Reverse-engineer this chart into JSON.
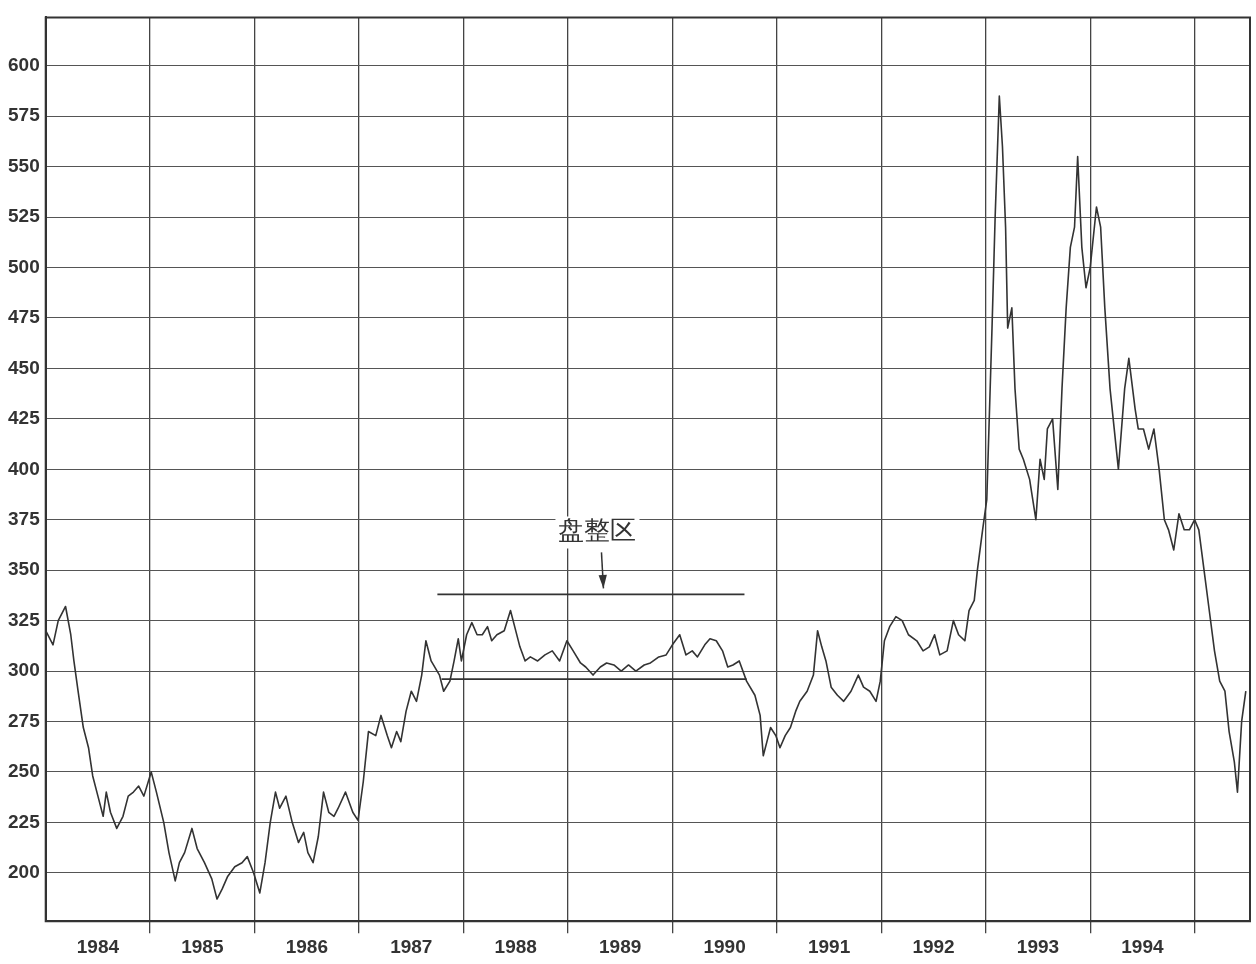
{
  "chart_data": {
    "type": "line",
    "annotations": [
      {
        "text": "盘整区",
        "x": 1989.34,
        "y": 338
      }
    ],
    "xlim": [
      1984,
      1995.53
    ],
    "ylim": [
      176,
      624
    ],
    "xticks": [
      {
        "value": 1984.5,
        "label": "1984"
      },
      {
        "value": 1985,
        "label": null
      },
      {
        "value": 1985.5,
        "label": "1985"
      },
      {
        "value": 1986,
        "label": null
      },
      {
        "value": 1986.5,
        "label": "1986"
      },
      {
        "value": 1987,
        "label": null
      },
      {
        "value": 1987.5,
        "label": "1987"
      },
      {
        "value": 1988,
        "label": null
      },
      {
        "value": 1988.5,
        "label": "1988"
      },
      {
        "value": 1989,
        "label": null
      },
      {
        "value": 1989.5,
        "label": "1989"
      },
      {
        "value": 1990,
        "label": null
      },
      {
        "value": 1990.5,
        "label": "1990"
      },
      {
        "value": 1991,
        "label": null
      },
      {
        "value": 1991.5,
        "label": "1991"
      },
      {
        "value": 1992,
        "label": null
      },
      {
        "value": 1992.5,
        "label": "1992"
      },
      {
        "value": 1993,
        "label": null
      },
      {
        "value": 1993.5,
        "label": "1993"
      },
      {
        "value": 1994,
        "label": null
      },
      {
        "value": 1994.5,
        "label": "1994"
      },
      {
        "value": 1995,
        "label": null
      }
    ],
    "yticks": [
      200,
      225,
      250,
      275,
      300,
      325,
      350,
      375,
      400,
      425,
      450,
      475,
      500,
      525,
      550,
      575,
      600
    ],
    "grid": true,
    "marker": "none",
    "line_style": "solid",
    "series": [
      {
        "color": "#333333",
        "x": [
          1984.0,
          1984.07,
          1984.12,
          1984.19,
          1984.24,
          1984.27,
          1984.31,
          1984.36,
          1984.41,
          1984.45,
          1984.5,
          1984.55,
          1984.58,
          1984.62,
          1984.68,
          1984.74,
          1984.79,
          1984.84,
          1984.89,
          1984.94,
          1985.01,
          1985.06,
          1985.13,
          1985.18,
          1985.24,
          1985.28,
          1985.33,
          1985.4,
          1985.45,
          1985.52,
          1985.59,
          1985.64,
          1985.69,
          1985.74,
          1985.81,
          1985.88,
          1985.93,
          1985.99,
          1986.05,
          1986.1,
          1986.15,
          1986.2,
          1986.24,
          1986.3,
          1986.36,
          1986.42,
          1986.47,
          1986.51,
          1986.56,
          1986.61,
          1986.66,
          1986.71,
          1986.76,
          1986.8,
          1986.87,
          1986.94,
          1986.99,
          1987.04,
          1987.09,
          1987.16,
          1987.21,
          1987.27,
          1987.31,
          1987.36,
          1987.4,
          1987.45,
          1987.5,
          1987.55,
          1987.6,
          1987.64,
          1987.69,
          1987.77,
          1987.81,
          1987.87,
          1987.91,
          1987.95,
          1987.98,
          1988.03,
          1988.08,
          1988.13,
          1988.18,
          1988.23,
          1988.27,
          1988.32,
          1988.39,
          1988.45,
          1988.49,
          1988.54,
          1988.59,
          1988.64,
          1988.71,
          1988.78,
          1988.85,
          1988.92,
          1988.99,
          1989.05,
          1989.12,
          1989.17,
          1989.24,
          1989.31,
          1989.37,
          1989.44,
          1989.51,
          1989.58,
          1989.65,
          1989.73,
          1989.79,
          1989.87,
          1989.94,
          1990.0,
          1990.07,
          1990.13,
          1990.19,
          1990.24,
          1990.31,
          1990.36,
          1990.42,
          1990.48,
          1990.53,
          1990.58,
          1990.64,
          1990.71,
          1990.79,
          1990.84,
          1990.87,
          1990.91,
          1990.94,
          1990.99,
          1991.03,
          1991.08,
          1991.13,
          1991.18,
          1991.22,
          1991.29,
          1991.35,
          1991.39,
          1991.43,
          1991.47,
          1991.52,
          1991.58,
          1991.64,
          1991.71,
          1991.78,
          1991.83,
          1991.89,
          1991.95,
          1991.99,
          1992.03,
          1992.08,
          1992.14,
          1992.2,
          1992.26,
          1992.34,
          1992.4,
          1992.46,
          1992.51,
          1992.56,
          1992.63,
          1992.69,
          1992.74,
          1992.8,
          1992.84,
          1992.89,
          1992.92,
          1992.97,
          1993.01,
          1993.06,
          1993.09,
          1993.13,
          1993.16,
          1993.19,
          1993.21,
          1993.25,
          1993.28,
          1993.32,
          1993.36,
          1993.42,
          1993.48,
          1993.52,
          1993.56,
          1993.59,
          1993.64,
          1993.69,
          1993.73,
          1993.77,
          1993.81,
          1993.85,
          1993.88,
          1993.92,
          1993.96,
          1994.0,
          1994.06,
          1994.1,
          1994.14,
          1994.19,
          1994.23,
          1994.27,
          1994.33,
          1994.37,
          1994.43,
          1994.46,
          1994.51,
          1994.56,
          1994.61,
          1994.66,
          1994.71,
          1994.75,
          1994.8,
          1994.85,
          1994.9,
          1994.95,
          1995.0,
          1995.04,
          1995.09,
          1995.14,
          1995.19,
          1995.24,
          1995.29,
          1995.33,
          1995.38,
          1995.41,
          1995.45,
          1995.49
        ],
        "values": [
          320,
          313,
          325,
          332,
          318,
          305,
          290,
          272,
          262,
          248,
          238,
          228,
          240,
          230,
          222,
          228,
          238,
          240,
          243,
          238,
          250,
          240,
          225,
          210,
          196,
          205,
          210,
          222,
          212,
          205,
          197,
          187,
          192,
          198,
          203,
          205,
          208,
          200,
          190,
          205,
          225,
          240,
          232,
          238,
          225,
          215,
          220,
          210,
          205,
          218,
          240,
          230,
          228,
          232,
          240,
          230,
          226,
          245,
          270,
          268,
          278,
          268,
          262,
          270,
          265,
          280,
          290,
          285,
          298,
          315,
          305,
          298,
          290,
          295,
          305,
          316,
          305,
          318,
          324,
          318,
          318,
          322,
          315,
          318,
          320,
          330,
          322,
          312,
          305,
          307,
          305,
          308,
          310,
          305,
          315,
          310,
          304,
          302,
          298,
          302,
          304,
          303,
          300,
          303,
          300,
          303,
          304,
          307,
          308,
          313,
          318,
          308,
          310,
          307,
          313,
          316,
          315,
          310,
          302,
          303,
          305,
          295,
          288,
          278,
          258,
          266,
          272,
          268,
          262,
          268,
          272,
          280,
          285,
          290,
          298,
          320,
          312,
          305,
          292,
          288,
          285,
          290,
          298,
          292,
          290,
          285,
          295,
          315,
          322,
          327,
          325,
          318,
          315,
          310,
          312,
          318,
          308,
          310,
          325,
          318,
          315,
          330,
          335,
          350,
          370,
          385,
          470,
          525,
          585,
          560,
          520,
          470,
          480,
          440,
          410,
          405,
          395,
          375,
          405,
          395,
          420,
          425,
          390,
          440,
          480,
          510,
          520,
          555,
          510,
          490,
          500,
          530,
          520,
          480,
          440,
          420,
          400,
          440,
          455,
          430,
          420,
          420,
          410,
          420,
          400,
          375,
          370,
          360,
          378,
          370,
          370,
          375,
          370,
          350,
          330,
          310,
          295,
          290,
          270,
          255,
          240,
          275,
          290
        ]
      },
      {
        "color": "#333333",
        "x": [
          1987.75,
          1990.69
        ],
        "values": [
          338,
          338
        ]
      },
      {
        "color": "#333333",
        "x": [
          1987.79,
          1990.71
        ],
        "values": [
          296,
          296
        ]
      }
    ]
  }
}
